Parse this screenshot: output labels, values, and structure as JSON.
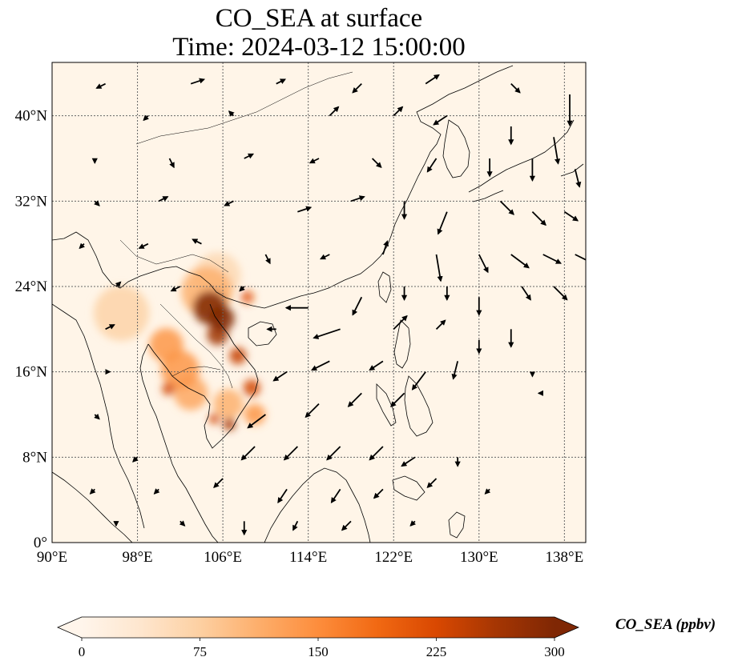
{
  "title": {
    "line1": "CO_SEA at surface",
    "line2": "Time: 2024-03-12 15:00:00"
  },
  "map": {
    "extent": {
      "lon": [
        90,
        140
      ],
      "lat": [
        0,
        45
      ]
    },
    "lon_ticks": [
      {
        "value": 90,
        "label": "90°E"
      },
      {
        "value": 98,
        "label": "98°E"
      },
      {
        "value": 106,
        "label": "106°E"
      },
      {
        "value": 114,
        "label": "114°E"
      },
      {
        "value": 122,
        "label": "122°E"
      },
      {
        "value": 130,
        "label": "130°E"
      },
      {
        "value": 138,
        "label": "138°E"
      }
    ],
    "lat_ticks": [
      {
        "value": 0,
        "label": "0°"
      },
      {
        "value": 8,
        "label": "8°N"
      },
      {
        "value": 16,
        "label": "16°N"
      },
      {
        "value": 24,
        "label": "24°N"
      },
      {
        "value": 32,
        "label": "32°N"
      },
      {
        "value": 40,
        "label": "40°N"
      }
    ],
    "gridlines": true,
    "background_color": "#fff5e8",
    "hotspots": [
      {
        "lon": 104.8,
        "lat": 22.0,
        "value": 300,
        "r": 1.6
      },
      {
        "lon": 105.9,
        "lat": 21.0,
        "value": 300,
        "r": 1.2
      },
      {
        "lon": 105.5,
        "lat": 19.5,
        "value": 270,
        "r": 1.0
      },
      {
        "lon": 107.4,
        "lat": 17.5,
        "value": 240,
        "r": 0.8
      },
      {
        "lon": 108.7,
        "lat": 14.5,
        "value": 230,
        "r": 0.8
      },
      {
        "lon": 106.6,
        "lat": 11.1,
        "value": 260,
        "r": 0.6
      },
      {
        "lon": 105.2,
        "lat": 11.6,
        "value": 230,
        "r": 0.5
      },
      {
        "lon": 100.9,
        "lat": 14.4,
        "value": 230,
        "r": 0.6
      },
      {
        "lon": 108.3,
        "lat": 23.0,
        "value": 210,
        "r": 0.6
      },
      {
        "lon": 100.7,
        "lat": 18.5,
        "value": 140,
        "r": 1.6
      },
      {
        "lon": 102.0,
        "lat": 16.2,
        "value": 140,
        "r": 1.8
      },
      {
        "lon": 103.0,
        "lat": 14.0,
        "value": 120,
        "r": 1.6
      },
      {
        "lon": 104.5,
        "lat": 23.5,
        "value": 110,
        "r": 2.4
      },
      {
        "lon": 96.5,
        "lat": 21.5,
        "value": 70,
        "r": 2.6
      },
      {
        "lon": 105.5,
        "lat": 25.0,
        "value": 60,
        "r": 2.2
      },
      {
        "lon": 109.0,
        "lat": 12.0,
        "value": 140,
        "r": 1.0
      },
      {
        "lon": 106.5,
        "lat": 13.0,
        "value": 110,
        "r": 1.4
      }
    ]
  },
  "colorbar": {
    "label": "CO_SEA (ppbv)",
    "vmin": 0,
    "vmax": 300,
    "ticks": [
      {
        "value": 0,
        "label": "0"
      },
      {
        "value": 75,
        "label": "75"
      },
      {
        "value": 150,
        "label": "150"
      },
      {
        "value": 225,
        "label": "225"
      },
      {
        "value": 300,
        "label": "300"
      }
    ],
    "colors": [
      "#fff5eb",
      "#fee6ce",
      "#fdd0a2",
      "#fdae6b",
      "#fd8d3c",
      "#f16913",
      "#d94801",
      "#a63603",
      "#7f2704"
    ],
    "extend": "both"
  },
  "wind_vectors": [
    {
      "lon": 95,
      "lat": 43,
      "u": -2,
      "v": -1
    },
    {
      "lon": 103,
      "lat": 43,
      "u": 3,
      "v": 1
    },
    {
      "lon": 111,
      "lat": 43,
      "u": 2,
      "v": 1
    },
    {
      "lon": 119,
      "lat": 43,
      "u": -2,
      "v": -2
    },
    {
      "lon": 125,
      "lat": 43,
      "u": 3,
      "v": 2
    },
    {
      "lon": 133,
      "lat": 43,
      "u": 2,
      "v": -2
    },
    {
      "lon": 138.5,
      "lat": 42,
      "u": 0,
      "v": -7
    },
    {
      "lon": 99,
      "lat": 40,
      "u": -1,
      "v": -1
    },
    {
      "lon": 107,
      "lat": 40,
      "u": -1,
      "v": 1
    },
    {
      "lon": 116,
      "lat": 40,
      "u": 2,
      "v": 2
    },
    {
      "lon": 122,
      "lat": 40,
      "u": 2,
      "v": 2
    },
    {
      "lon": 127,
      "lat": 40,
      "u": -3,
      "v": -2
    },
    {
      "lon": 133,
      "lat": 39,
      "u": 0,
      "v": -4
    },
    {
      "lon": 137,
      "lat": 38,
      "u": 1,
      "v": -6
    },
    {
      "lon": 94,
      "lat": 36,
      "u": 0,
      "v": -1
    },
    {
      "lon": 101,
      "lat": 36,
      "u": 1,
      "v": -2
    },
    {
      "lon": 108,
      "lat": 36,
      "u": 2,
      "v": 1
    },
    {
      "lon": 115,
      "lat": 36,
      "u": -2,
      "v": -1
    },
    {
      "lon": 120,
      "lat": 36,
      "u": 2,
      "v": -2
    },
    {
      "lon": 126,
      "lat": 36,
      "u": -2,
      "v": -3
    },
    {
      "lon": 131,
      "lat": 36,
      "u": 0,
      "v": -4
    },
    {
      "lon": 135,
      "lat": 36,
      "u": 0,
      "v": -5
    },
    {
      "lon": 139,
      "lat": 35,
      "u": 1,
      "v": -4
    },
    {
      "lon": 94,
      "lat": 32,
      "u": 1,
      "v": -1
    },
    {
      "lon": 100,
      "lat": 32,
      "u": 2,
      "v": 1
    },
    {
      "lon": 107,
      "lat": 32,
      "u": -2,
      "v": -1
    },
    {
      "lon": 113,
      "lat": 31,
      "u": 3,
      "v": 1
    },
    {
      "lon": 118,
      "lat": 32,
      "u": 3,
      "v": 1
    },
    {
      "lon": 123,
      "lat": 32,
      "u": 0,
      "v": -4
    },
    {
      "lon": 127,
      "lat": 31,
      "u": -2,
      "v": -5
    },
    {
      "lon": 132,
      "lat": 32,
      "u": 3,
      "v": -3
    },
    {
      "lon": 135,
      "lat": 31,
      "u": 3,
      "v": -3
    },
    {
      "lon": 138,
      "lat": 31,
      "u": 3,
      "v": -2
    },
    {
      "lon": 93,
      "lat": 28,
      "u": -1,
      "v": -1
    },
    {
      "lon": 99,
      "lat": 28,
      "u": -2,
      "v": -1
    },
    {
      "lon": 104,
      "lat": 28,
      "u": -2,
      "v": 1
    },
    {
      "lon": 110,
      "lat": 27,
      "u": 1,
      "v": -2
    },
    {
      "lon": 116,
      "lat": 27,
      "u": -2,
      "v": -1
    },
    {
      "lon": 121,
      "lat": 27,
      "u": 1,
      "v": 3
    },
    {
      "lon": 126,
      "lat": 27,
      "u": 1,
      "v": -6
    },
    {
      "lon": 130,
      "lat": 27,
      "u": 2,
      "v": -4
    },
    {
      "lon": 133,
      "lat": 27,
      "u": 4,
      "v": -3
    },
    {
      "lon": 136,
      "lat": 27,
      "u": 4,
      "v": -2
    },
    {
      "lon": 139,
      "lat": 27,
      "u": 4,
      "v": -2
    },
    {
      "lon": 96,
      "lat": 24,
      "u": 1,
      "v": 1
    },
    {
      "lon": 102,
      "lat": 24,
      "u": -2,
      "v": -1
    },
    {
      "lon": 108,
      "lat": 24,
      "u": -1,
      "v": -1
    },
    {
      "lon": 114,
      "lat": 22,
      "u": -5,
      "v": 0
    },
    {
      "lon": 119,
      "lat": 23,
      "u": -2,
      "v": -4
    },
    {
      "lon": 123,
      "lat": 24,
      "u": 0,
      "v": -3
    },
    {
      "lon": 127,
      "lat": 24,
      "u": 0,
      "v": -3
    },
    {
      "lon": 130,
      "lat": 23,
      "u": 0,
      "v": -4
    },
    {
      "lon": 134,
      "lat": 24,
      "u": 2,
      "v": -3
    },
    {
      "lon": 137,
      "lat": 24,
      "u": 3,
      "v": -3
    },
    {
      "lon": 95,
      "lat": 20,
      "u": 2,
      "v": 1
    },
    {
      "lon": 111,
      "lat": 20,
      "u": -2,
      "v": 0
    },
    {
      "lon": 117,
      "lat": 20,
      "u": -6,
      "v": -2
    },
    {
      "lon": 122,
      "lat": 20,
      "u": 3,
      "v": 3
    },
    {
      "lon": 126,
      "lat": 20,
      "u": 2,
      "v": 2
    },
    {
      "lon": 130,
      "lat": 19,
      "u": 0,
      "v": -3
    },
    {
      "lon": 133,
      "lat": 20,
      "u": 0,
      "v": -4
    },
    {
      "lon": 95,
      "lat": 16,
      "u": 1,
      "v": 0
    },
    {
      "lon": 112,
      "lat": 16,
      "u": -3,
      "v": -2
    },
    {
      "lon": 116,
      "lat": 17,
      "u": -4,
      "v": -2
    },
    {
      "lon": 121,
      "lat": 17,
      "u": -3,
      "v": -2
    },
    {
      "lon": 125,
      "lat": 16,
      "u": -3,
      "v": -4
    },
    {
      "lon": 128,
      "lat": 17,
      "u": -1,
      "v": -4
    },
    {
      "lon": 135,
      "lat": 16,
      "u": 0,
      "v": -1
    },
    {
      "lon": 94,
      "lat": 12,
      "u": 1,
      "v": -1
    },
    {
      "lon": 110,
      "lat": 12,
      "u": -4,
      "v": -3
    },
    {
      "lon": 115,
      "lat": 13,
      "u": -3,
      "v": -3
    },
    {
      "lon": 119,
      "lat": 14,
      "u": -3,
      "v": -3
    },
    {
      "lon": 123,
      "lat": 14,
      "u": -3,
      "v": -3
    },
    {
      "lon": 136,
      "lat": 14,
      "u": -1,
      "v": 0
    },
    {
      "lon": 98,
      "lat": 8,
      "u": -1,
      "v": -1
    },
    {
      "lon": 109,
      "lat": 9,
      "u": -3,
      "v": -3
    },
    {
      "lon": 113,
      "lat": 9,
      "u": -3,
      "v": -3
    },
    {
      "lon": 117,
      "lat": 9,
      "u": -3,
      "v": -3
    },
    {
      "lon": 121,
      "lat": 9,
      "u": -3,
      "v": -3
    },
    {
      "lon": 124,
      "lat": 8,
      "u": -3,
      "v": -2
    },
    {
      "lon": 128,
      "lat": 8,
      "u": 0,
      "v": -2
    },
    {
      "lon": 94,
      "lat": 5,
      "u": -1,
      "v": -1
    },
    {
      "lon": 100,
      "lat": 5,
      "u": -1,
      "v": -1
    },
    {
      "lon": 106,
      "lat": 6,
      "u": -2,
      "v": -2
    },
    {
      "lon": 112,
      "lat": 5,
      "u": -2,
      "v": -3
    },
    {
      "lon": 117,
      "lat": 5,
      "u": -2,
      "v": -3
    },
    {
      "lon": 121,
      "lat": 5,
      "u": -2,
      "v": -2
    },
    {
      "lon": 126,
      "lat": 6,
      "u": -2,
      "v": -2
    },
    {
      "lon": 131,
      "lat": 5,
      "u": -1,
      "v": -1
    },
    {
      "lon": 96,
      "lat": 2,
      "u": 0,
      "v": -1
    },
    {
      "lon": 102,
      "lat": 2,
      "u": 1,
      "v": -1
    },
    {
      "lon": 108,
      "lat": 2,
      "u": 0,
      "v": -3
    },
    {
      "lon": 113,
      "lat": 2,
      "u": -1,
      "v": -2
    },
    {
      "lon": 118,
      "lat": 2,
      "u": -2,
      "v": -2
    },
    {
      "lon": 124,
      "lat": 2,
      "u": -1,
      "v": -1
    }
  ]
}
